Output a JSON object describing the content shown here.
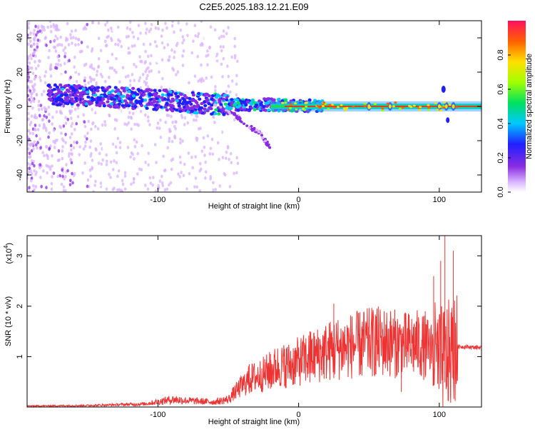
{
  "title": "C2E5.2025.183.12.21.E09",
  "chart_data": [
    {
      "type": "heatmap",
      "xlabel": "Height of straight line (km)",
      "ylabel": "Frequency (Hz)",
      "xlim": [
        -193,
        130
      ],
      "ylim": [
        -50,
        50
      ],
      "xticks": [
        -100,
        0,
        100
      ],
      "yticks": [
        -40,
        -20,
        0,
        20,
        40
      ],
      "colorbar": {
        "label": "Normalized spectral amplitude",
        "range": [
          0,
          1
        ],
        "ticks": [
          0.0,
          0.2,
          0.4,
          0.6,
          0.8
        ]
      },
      "ridge": [
        {
          "x": -175,
          "f": 7
        },
        {
          "x": -150,
          "f": 6
        },
        {
          "x": -125,
          "f": 5
        },
        {
          "x": -100,
          "f": 4
        },
        {
          "x": -75,
          "f": 2
        },
        {
          "x": -50,
          "f": 1
        },
        {
          "x": -25,
          "f": 1
        },
        {
          "x": 0,
          "f": 0.5
        },
        {
          "x": 25,
          "f": 0
        },
        {
          "x": 50,
          "f": 0
        },
        {
          "x": 75,
          "f": 0
        },
        {
          "x": 100,
          "f": 0
        },
        {
          "x": 130,
          "f": 0
        }
      ],
      "branch": [
        {
          "x": -60,
          "f": 0
        },
        {
          "x": -45,
          "f": -5
        },
        {
          "x": -33,
          "f": -13
        },
        {
          "x": -28,
          "f": -15
        },
        {
          "x": -22,
          "f": -22
        },
        {
          "x": -20,
          "f": -25
        }
      ],
      "feature_x": [
        50,
        65,
        100,
        105,
        110
      ]
    },
    {
      "type": "line",
      "xlabel": "Height of straight line (km)",
      "ylabel": "SNR (10 * v/v)",
      "multiplier": "(x10",
      "multiplier_exp": "4",
      "multiplier_close": ")",
      "xlim": [
        -193,
        130
      ],
      "ylim": [
        0,
        3.4
      ],
      "xticks": [
        -100,
        0,
        100
      ],
      "yticks": [
        1,
        2,
        3
      ],
      "color": "#ee3333",
      "envelope": [
        {
          "x": -193,
          "y": 0.02
        },
        {
          "x": -150,
          "y": 0.03
        },
        {
          "x": -110,
          "y": 0.06
        },
        {
          "x": -90,
          "y": 0.15
        },
        {
          "x": -75,
          "y": 0.12
        },
        {
          "x": -60,
          "y": 0.1
        },
        {
          "x": -50,
          "y": 0.15
        },
        {
          "x": -45,
          "y": 0.3
        },
        {
          "x": -35,
          "y": 0.55
        },
        {
          "x": -25,
          "y": 0.65
        },
        {
          "x": -15,
          "y": 0.8
        },
        {
          "x": -5,
          "y": 0.85
        },
        {
          "x": 5,
          "y": 0.95
        },
        {
          "x": 15,
          "y": 1.05
        },
        {
          "x": 25,
          "y": 1.15
        },
        {
          "x": 35,
          "y": 1.2
        },
        {
          "x": 45,
          "y": 1.25
        },
        {
          "x": 55,
          "y": 1.3
        },
        {
          "x": 65,
          "y": 1.28
        },
        {
          "x": 75,
          "y": 1.22
        },
        {
          "x": 85,
          "y": 1.25
        },
        {
          "x": 95,
          "y": 1.1
        },
        {
          "x": 100,
          "y": 0.9
        },
        {
          "x": 105,
          "y": 1.0
        },
        {
          "x": 110,
          "y": 1.1
        },
        {
          "x": 113,
          "y": 1.2
        },
        {
          "x": 130,
          "y": 1.18
        }
      ],
      "spikes": [
        {
          "x": -35,
          "y": 0.85
        },
        {
          "x": -20,
          "y": 1.05
        },
        {
          "x": -10,
          "y": 1.15
        },
        {
          "x": 8,
          "y": 1.5
        },
        {
          "x": 25,
          "y": 2.05
        },
        {
          "x": 45,
          "y": 1.6
        },
        {
          "x": 55,
          "y": 1.8
        },
        {
          "x": 65,
          "y": 1.7
        },
        {
          "x": 73,
          "y": 0.3
        },
        {
          "x": 90,
          "y": 1.9
        },
        {
          "x": 96,
          "y": 2.6
        },
        {
          "x": 101,
          "y": 2.9
        },
        {
          "x": 104,
          "y": 3.4
        },
        {
          "x": 108,
          "y": 0.2
        },
        {
          "x": 110,
          "y": 3.1
        }
      ]
    }
  ]
}
